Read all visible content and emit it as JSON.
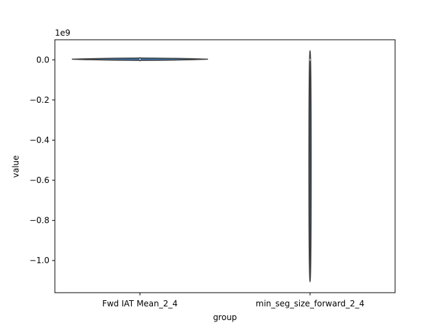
{
  "chart_data": {
    "type": "violin",
    "xlabel": "group",
    "ylabel": "value",
    "offset_label": "1e9",
    "categories": [
      "Fwd IAT Mean_2_4",
      "min_seg_size_forward_2_4"
    ],
    "ylim": [
      -1.16,
      0.1
    ],
    "yticks": [
      0.0,
      -0.2,
      -0.4,
      -0.6,
      -0.8,
      -1.0
    ],
    "ytick_labels": [
      "0.0",
      "−0.2",
      "−0.4",
      "−0.6",
      "−0.8",
      "−1.0"
    ],
    "violins": [
      {
        "category": "Fwd IAT Mean_2_4",
        "min": -0.001,
        "max": 0.007,
        "median": 0.003,
        "q1": 0.0,
        "q3": 0.005,
        "shape": "flat"
      },
      {
        "category": "min_seg_size_forward_2_4",
        "min": -1.1,
        "max": 0.04,
        "median": 0.0,
        "q1": 0.0,
        "q3": 0.0,
        "shape": "thin"
      }
    ],
    "colors": {
      "violin_fill": "#3b75af",
      "violin_edge": "#3f3f3f",
      "axis": "#000000",
      "median": "#ffffff"
    }
  }
}
